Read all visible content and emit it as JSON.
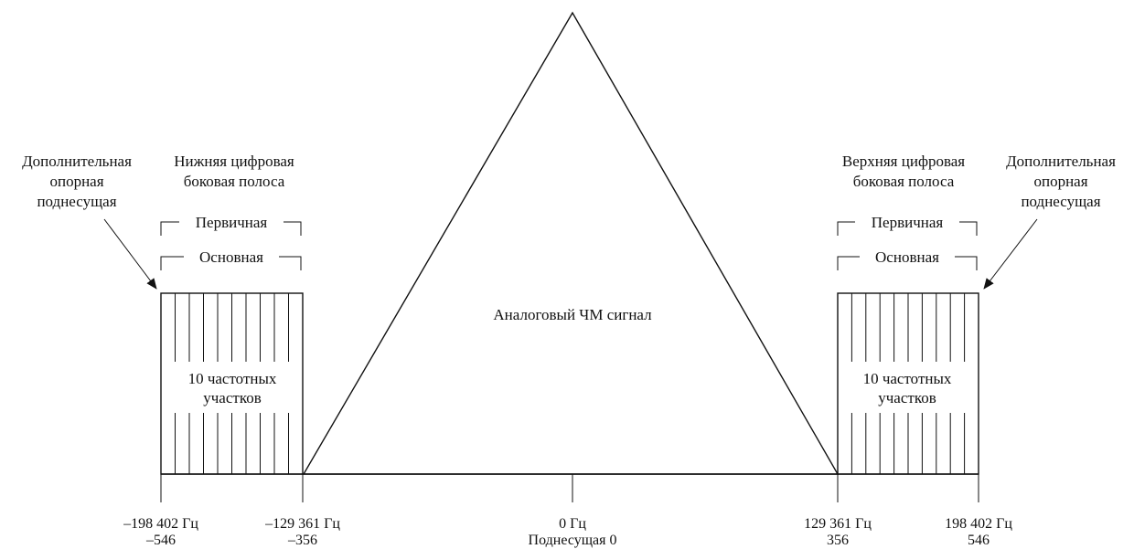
{
  "analog_signal": {
    "label": "Аналоговый ЧМ сигнал"
  },
  "lower_sideband": {
    "title_line1": "Нижняя цифровая",
    "title_line2": "боковая полоса",
    "primary_label": "Первичная",
    "main_label": "Основная",
    "partitions_line1": "10 частотных",
    "partitions_line2": "участков",
    "reference_line1": "Дополнительная",
    "reference_line2": "опорная",
    "reference_line3": "поднесущая",
    "partition_count": 10
  },
  "upper_sideband": {
    "title_line1": "Верхняя цифровая",
    "title_line2": "боковая полоса",
    "primary_label": "Первичная",
    "main_label": "Основная",
    "partitions_line1": "10 частотных",
    "partitions_line2": "участков",
    "reference_line1": "Дополнительная",
    "reference_line2": "опорная",
    "reference_line3": "поднесущая",
    "partition_count": 10
  },
  "axis": {
    "ticks": [
      {
        "freq": "–198 402  Гц",
        "subcarrier": "–546"
      },
      {
        "freq": "–129 361  Гц",
        "subcarrier": "–356"
      },
      {
        "freq": "0 Гц",
        "subcarrier": "Поднесущая 0"
      },
      {
        "freq": "129 361  Гц",
        "subcarrier": "356"
      },
      {
        "freq": "198 402  Гц",
        "subcarrier": "546"
      }
    ]
  },
  "colors": {
    "band_fill": "#bdbdbd",
    "line": "#111111"
  }
}
